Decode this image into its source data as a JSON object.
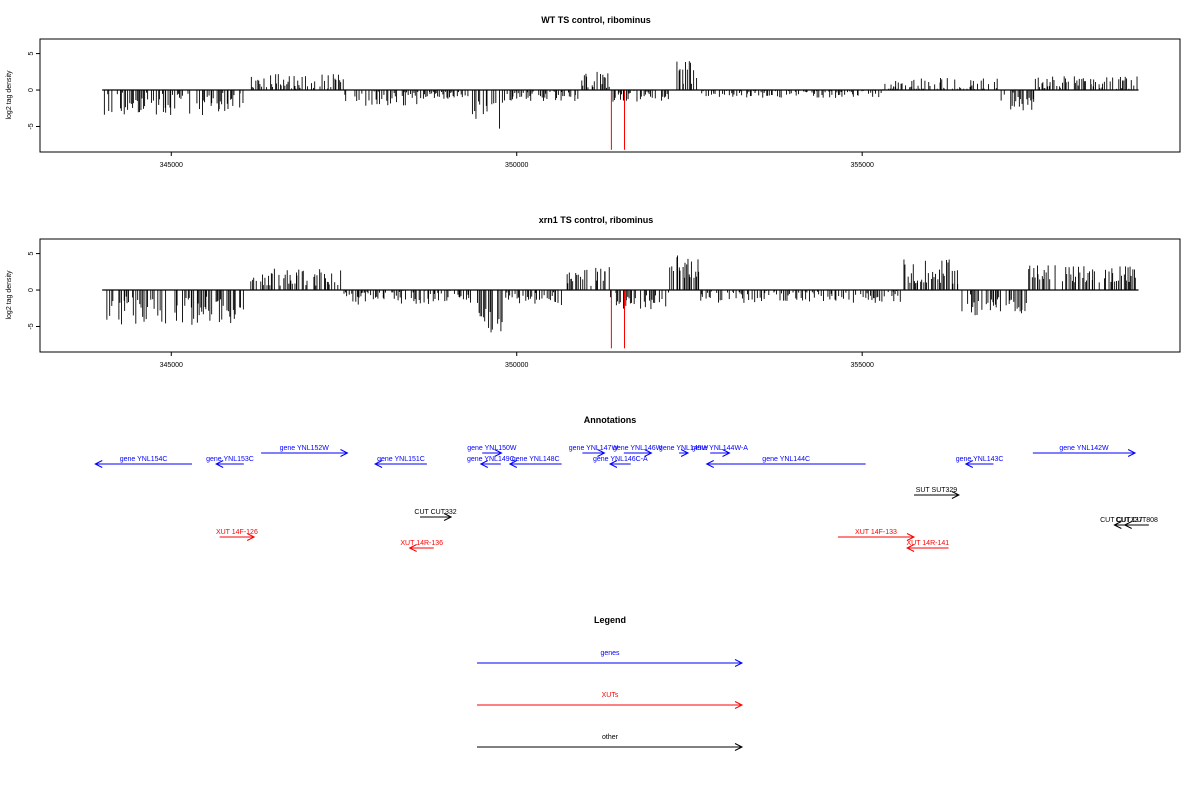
{
  "chart_data": [
    {
      "type": "bar",
      "title": "WT TS control, ribominus",
      "xlabel": "",
      "ylabel": "log2 tag density",
      "xlim": [
        343100,
        359600
      ],
      "ylim": [
        -8.5,
        7
      ],
      "x_tick_values": [
        345000,
        350000,
        355000
      ],
      "x_tick_labels": [
        "345000",
        "350000",
        "355000"
      ],
      "y_tick_values": [
        -5,
        0,
        5
      ],
      "y_tick_labels": [
        "-5",
        "0",
        "5"
      ],
      "x_range_data": [
        344000,
        359000
      ],
      "highlighted_series": {
        "name": "",
        "color": "#ff0000",
        "x": [
          351370,
          351560
        ],
        "values": [
          -8.2,
          -8.2
        ]
      },
      "segments": [
        {
          "from": 344000,
          "to": 346050,
          "mean": -1.9,
          "amp": 1.6
        },
        {
          "from": 346150,
          "to": 346500,
          "mean": 1.5,
          "amp": 1.2
        },
        {
          "from": 346500,
          "to": 347500,
          "mean": 1.0,
          "amp": 1.2
        },
        {
          "from": 347500,
          "to": 348600,
          "mean": -1.2,
          "amp": 1.1
        },
        {
          "from": 348600,
          "to": 349300,
          "mean": -0.7,
          "amp": 0.5
        },
        {
          "from": 349300,
          "to": 349800,
          "mean": -3.2,
          "amp": 2.3
        },
        {
          "from": 349800,
          "to": 350900,
          "mean": -0.8,
          "amp": 0.7
        },
        {
          "from": 350900,
          "to": 351350,
          "mean": 1.5,
          "amp": 1.3
        },
        {
          "from": 351350,
          "to": 352200,
          "mean": -0.9,
          "amp": 0.9
        },
        {
          "from": 352300,
          "to": 352650,
          "mean": 2.4,
          "amp": 1.6
        },
        {
          "from": 352650,
          "to": 355300,
          "mean": -0.5,
          "amp": 0.6
        },
        {
          "from": 355300,
          "to": 357000,
          "mean": 0.6,
          "amp": 1.1
        },
        {
          "from": 357000,
          "to": 357500,
          "mean": -1.5,
          "amp": 1.3
        },
        {
          "from": 357500,
          "to": 359000,
          "mean": 1.0,
          "amp": 0.9
        }
      ]
    },
    {
      "type": "bar",
      "title": "xrn1 TS control, ribominus",
      "xlabel": "",
      "ylabel": "log2 tag density",
      "xlim": [
        343100,
        359600
      ],
      "ylim": [
        -8.5,
        7
      ],
      "x_tick_values": [
        345000,
        350000,
        355000
      ],
      "x_tick_labels": [
        "345000",
        "350000",
        "355000"
      ],
      "y_tick_values": [
        -5,
        0,
        5
      ],
      "y_tick_labels": [
        "-5",
        "0",
        "5"
      ],
      "x_range_data": [
        344000,
        359000
      ],
      "highlighted_series": {
        "name": "",
        "color": "#ff0000",
        "x": [
          351370,
          351560
        ],
        "values": [
          -8.0,
          -8.0
        ]
      },
      "segments": [
        {
          "from": 344000,
          "to": 346050,
          "mean": -2.8,
          "amp": 2.0
        },
        {
          "from": 346150,
          "to": 347500,
          "mean": 1.8,
          "amp": 1.2
        },
        {
          "from": 347500,
          "to": 349300,
          "mean": -1.0,
          "amp": 1.0
        },
        {
          "from": 349300,
          "to": 349800,
          "mean": -3.5,
          "amp": 2.4
        },
        {
          "from": 349800,
          "to": 350700,
          "mean": -1.2,
          "amp": 0.9
        },
        {
          "from": 350700,
          "to": 351350,
          "mean": 1.8,
          "amp": 1.4
        },
        {
          "from": 351350,
          "to": 352200,
          "mean": -1.5,
          "amp": 1.2
        },
        {
          "from": 352200,
          "to": 352650,
          "mean": 3.0,
          "amp": 1.8
        },
        {
          "from": 352650,
          "to": 355600,
          "mean": -0.9,
          "amp": 0.9
        },
        {
          "from": 355600,
          "to": 356400,
          "mean": 2.4,
          "amp": 1.8
        },
        {
          "from": 356400,
          "to": 357400,
          "mean": -2.0,
          "amp": 1.5
        },
        {
          "from": 357400,
          "to": 359000,
          "mean": 2.2,
          "amp": 1.2
        }
      ]
    }
  ],
  "annotations": {
    "title": "Annotations",
    "items": [
      {
        "label": "gene YNL154C",
        "start": 345300,
        "end": 343900,
        "row": 1,
        "color": "#0000ff"
      },
      {
        "label": "gene YNL153C",
        "start": 346050,
        "end": 345650,
        "row": 1,
        "color": "#0000ff"
      },
      {
        "label": "gene YNL152W",
        "start": 346300,
        "end": 347550,
        "row": 0,
        "color": "#0000ff"
      },
      {
        "label": "gene YNL151C",
        "start": 348700,
        "end": 347950,
        "row": 1,
        "color": "#0000ff"
      },
      {
        "label": "gene YNL150W",
        "start": 349500,
        "end": 349780,
        "row": 0,
        "color": "#0000ff"
      },
      {
        "label": "gene YNL149C",
        "start": 349770,
        "end": 349480,
        "row": 1,
        "color": "#0000ff"
      },
      {
        "label": "gene YNL148C",
        "start": 350650,
        "end": 349900,
        "row": 1,
        "color": "#0000ff"
      },
      {
        "label": "gene YNL147W",
        "start": 350950,
        "end": 351270,
        "row": 0,
        "color": "#0000ff"
      },
      {
        "label": "gene YNL146C-A",
        "start": 351650,
        "end": 351350,
        "row": 1,
        "color": "#0000ff"
      },
      {
        "label": "gene YNL146W",
        "start": 351550,
        "end": 351950,
        "row": 0,
        "color": "#0000ff"
      },
      {
        "label": "gene YNL145W",
        "start": 352350,
        "end": 352480,
        "row": 0,
        "color": "#0000ff"
      },
      {
        "label": "gene YNL144W-A",
        "start": 352800,
        "end": 353080,
        "row": 0,
        "color": "#0000ff"
      },
      {
        "label": "gene YNL144C",
        "start": 355050,
        "end": 352750,
        "row": 1,
        "color": "#0000ff"
      },
      {
        "label": "gene YNL143C",
        "start": 356900,
        "end": 356500,
        "row": 1,
        "color": "#0000ff"
      },
      {
        "label": "gene YNL142W",
        "start": 357470,
        "end": 358950,
        "row": 0,
        "color": "#0000ff"
      },
      {
        "label": "CUT CUT332",
        "start": 348600,
        "end": 349050,
        "row": 2,
        "color": "#000000"
      },
      {
        "label": "SUT SUT329",
        "start": 355750,
        "end": 356400,
        "row": 3,
        "color": "#000000"
      },
      {
        "label": "CUT CUT337",
        "start": 358850,
        "end": 358650,
        "row": 4,
        "color": "#000000"
      },
      {
        "label": "CUT CUT808",
        "start": 359150,
        "end": 358800,
        "row": 4,
        "color": "#000000"
      },
      {
        "label": "XUT 14F-126",
        "start": 345700,
        "end": 346200,
        "row": 5,
        "color": "#ff0000"
      },
      {
        "label": "XUT 14R-136",
        "start": 348800,
        "end": 348450,
        "row": 6,
        "color": "#ff0000"
      },
      {
        "label": "XUT 14F-133",
        "start": 354650,
        "end": 355750,
        "row": 5,
        "color": "#ff0000"
      },
      {
        "label": "XUT 14R-141",
        "start": 356250,
        "end": 355650,
        "row": 6,
        "color": "#ff0000"
      }
    ]
  },
  "legend": {
    "title": "Legend",
    "entries": [
      {
        "label": "genes",
        "color": "#0000ff"
      },
      {
        "label": "XUTs",
        "color": "#ff0000"
      },
      {
        "label": "other",
        "color": "#000000"
      }
    ]
  }
}
